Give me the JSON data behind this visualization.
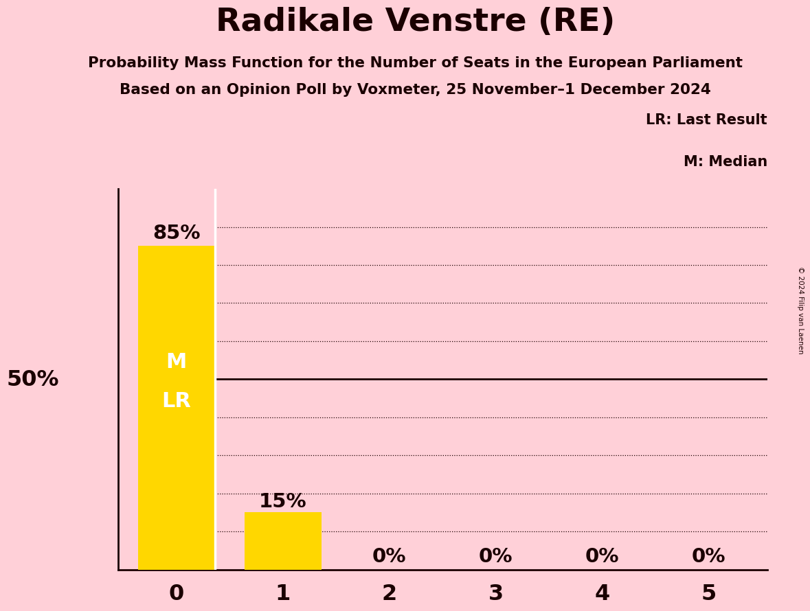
{
  "title": "Radikale Venstre (RE)",
  "subtitle1": "Probability Mass Function for the Number of Seats in the European Parliament",
  "subtitle2": "Based on an Opinion Poll by Voxmeter, 25 November–1 December 2024",
  "copyright": "© 2024 Filip van Laenen",
  "categories": [
    0,
    1,
    2,
    3,
    4,
    5
  ],
  "values": [
    0.85,
    0.15,
    0.0,
    0.0,
    0.0,
    0.0
  ],
  "bar_color": "#FFD700",
  "background_color": "#FFD0D8",
  "text_color": "#1a0000",
  "ylabel_50": "50%",
  "legend_lr": "LR: Last Result",
  "legend_m": "M: Median",
  "median_seat": 0,
  "last_result_seat": 0,
  "ylim_max": 1.0,
  "dotted_yticks": [
    0.1,
    0.2,
    0.3,
    0.4,
    0.6,
    0.7,
    0.8,
    0.9
  ],
  "solid_ytick": 0.5,
  "bar_width": 0.72
}
